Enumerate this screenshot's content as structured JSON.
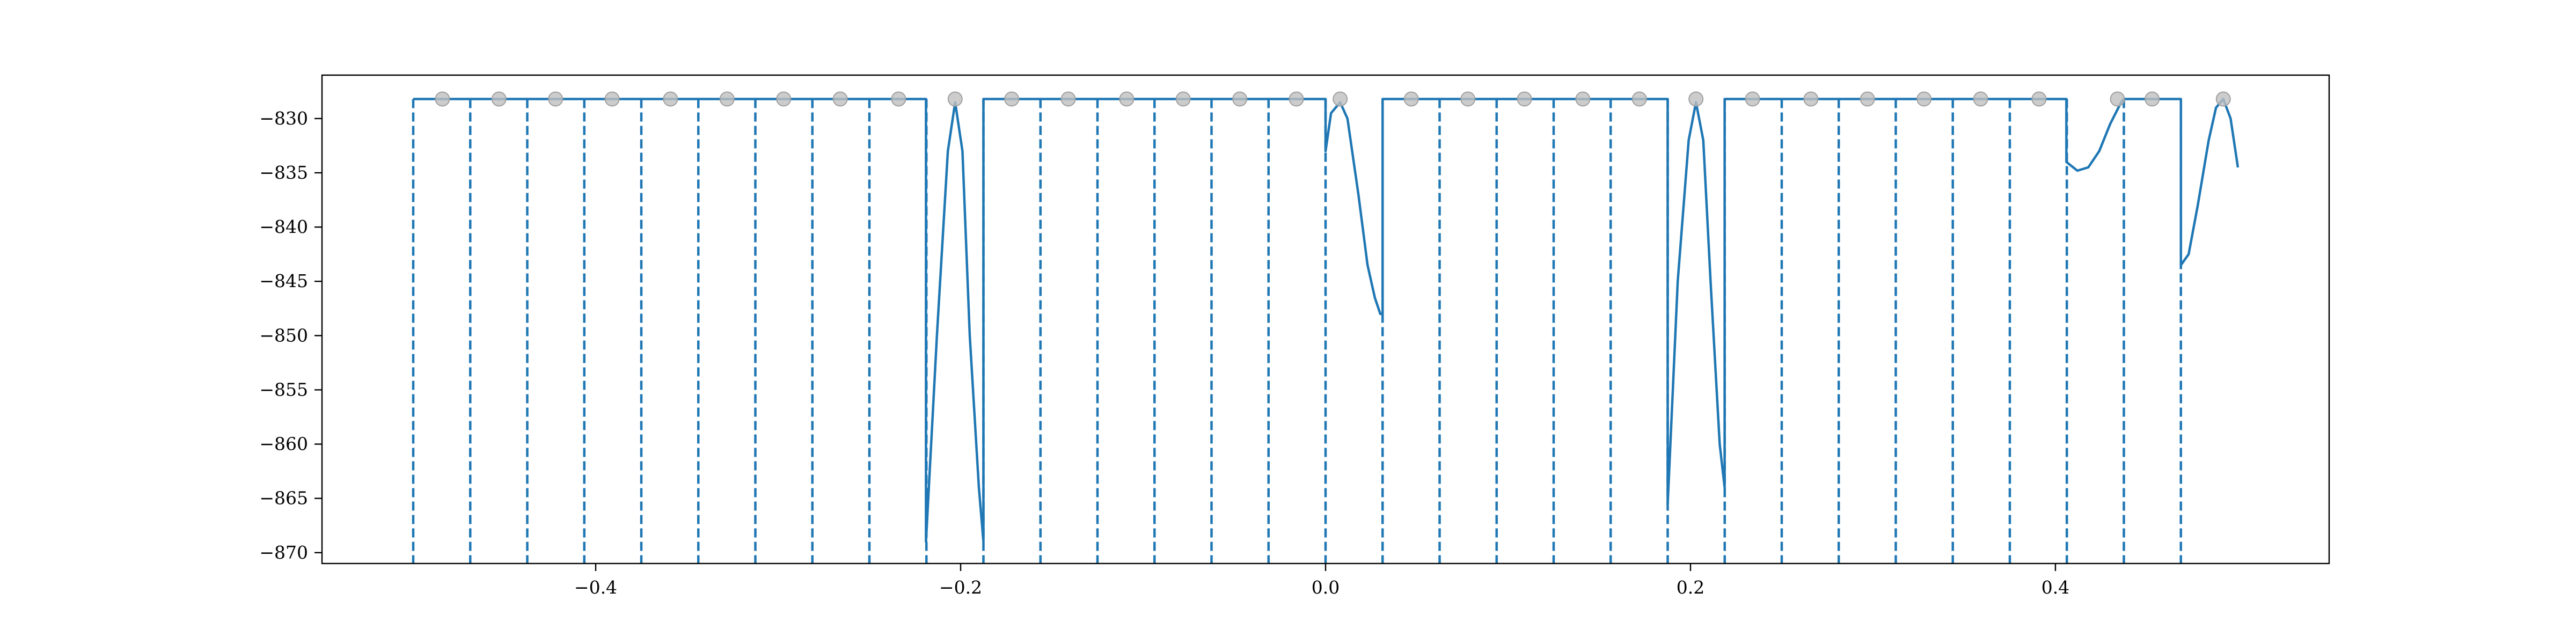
{
  "chart_data": {
    "type": "line",
    "title": "",
    "xlabel": "",
    "ylabel": "",
    "xlim": [
      -0.55,
      0.55
    ],
    "ylim": [
      -871,
      -826
    ],
    "grid": false,
    "legend": "none",
    "xticks": [
      -0.4,
      -0.2,
      0.0,
      0.2,
      0.4
    ],
    "xtick_labels": [
      "−0.4",
      "−0.2",
      "0.0",
      "0.2",
      "0.4"
    ],
    "yticks": [
      -830,
      -835,
      -840,
      -845,
      -850,
      -855,
      -860,
      -865,
      -870
    ],
    "ytick_labels": [
      "−830",
      "−835",
      "−840",
      "−845",
      "−850",
      "−855",
      "−860",
      "−865",
      "−870"
    ],
    "colors": {
      "line": "#1f77b4",
      "points": "#bfbfbf",
      "axes": "#000000"
    },
    "vertical_dashed_lines_x": [
      -0.5,
      -0.46875,
      -0.4375,
      -0.40625,
      -0.375,
      -0.34375,
      -0.3125,
      -0.28125,
      -0.25,
      -0.21875,
      -0.1875,
      -0.15625,
      -0.125,
      -0.09375,
      -0.0625,
      -0.03125,
      0.0,
      0.03125,
      0.0625,
      0.09375,
      0.125,
      0.15625,
      0.1875,
      0.21875,
      0.25,
      0.28125,
      0.3125,
      0.34375,
      0.375,
      0.40625,
      0.4375,
      0.46875
    ],
    "sample_points": {
      "x": [
        -0.484,
        -0.453,
        -0.422,
        -0.391,
        -0.359,
        -0.328,
        -0.297,
        -0.266,
        -0.234,
        -0.203,
        -0.172,
        -0.141,
        -0.109,
        -0.078,
        -0.047,
        -0.016,
        0.008,
        0.047,
        0.078,
        0.109,
        0.141,
        0.172,
        0.203,
        0.234,
        0.266,
        0.297,
        0.328,
        0.359,
        0.391,
        0.434,
        0.453,
        0.492
      ],
      "y": [
        -828.2,
        -828.2,
        -828.2,
        -828.2,
        -828.2,
        -828.2,
        -828.2,
        -828.2,
        -828.2,
        -828.2,
        -828.2,
        -828.2,
        -828.2,
        -828.2,
        -828.2,
        -828.2,
        -828.2,
        -828.2,
        -828.2,
        -828.2,
        -828.2,
        -828.2,
        -828.2,
        -828.2,
        -828.2,
        -828.2,
        -828.2,
        -828.2,
        -828.2,
        -828.2,
        -828.2,
        -828.2
      ]
    },
    "series": [
      {
        "x": [
          -0.5,
          -0.219,
          -0.219,
          -0.213,
          -0.207,
          -0.203,
          -0.199,
          -0.195,
          -0.19,
          -0.1875,
          -0.1875,
          0.0,
          0.0,
          0.003,
          0.008,
          0.012,
          0.018,
          0.023,
          0.027,
          0.03,
          0.03125,
          0.03125,
          0.1875,
          0.1875,
          0.193,
          0.199,
          0.203,
          0.207,
          0.211,
          0.216,
          0.2187,
          0.2187,
          0.406,
          0.406,
          0.412,
          0.418,
          0.424,
          0.43,
          0.436,
          0.4375,
          0.46875,
          0.46875,
          0.473,
          0.478,
          0.484,
          0.488,
          0.492,
          0.496,
          0.5
        ],
        "y": [
          -828.2,
          -828.2,
          -869.0,
          -850.0,
          -833.0,
          -828.5,
          -833.0,
          -850.0,
          -864.0,
          -869.0,
          -828.2,
          -828.2,
          -833.0,
          -829.5,
          -828.5,
          -830.0,
          -837.0,
          -843.5,
          -846.5,
          -848.0,
          -848.0,
          -828.2,
          -828.2,
          -865.5,
          -845.0,
          -832.0,
          -828.5,
          -832.0,
          -845.0,
          -860.0,
          -864.0,
          -828.2,
          -828.2,
          -834.0,
          -834.8,
          -834.5,
          -833.0,
          -830.5,
          -828.5,
          -828.2,
          -828.2,
          -843.5,
          -842.5,
          -838.0,
          -832.0,
          -829.0,
          -828.2,
          -830.0,
          -834.5
        ]
      }
    ]
  }
}
